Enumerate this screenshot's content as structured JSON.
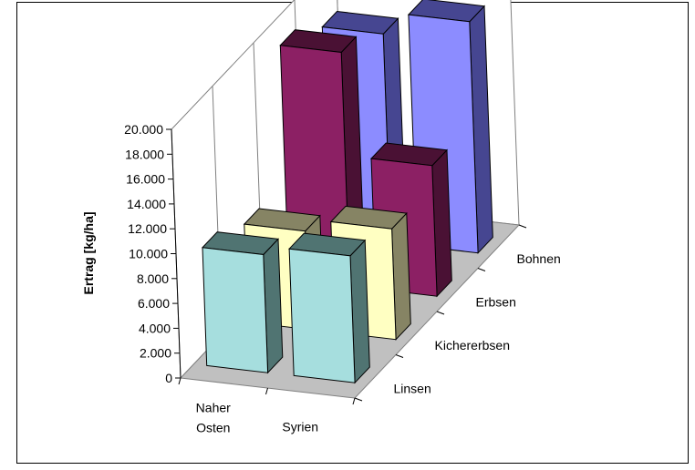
{
  "chart_data": {
    "type": "bar",
    "variant": "3d-column",
    "title": "",
    "ylabel": "Ertrag [kg/ha]",
    "ylim": [
      0,
      20000
    ],
    "ytick_labels": [
      "0",
      "2.000",
      "4.000",
      "6.000",
      "8.000",
      "10.000",
      "12.000",
      "14.000",
      "16.000",
      "18.000",
      "20.000"
    ],
    "categories": [
      "Naher\nOsten",
      "Syrien"
    ],
    "category_lines": [
      [
        "Naher",
        "Osten"
      ],
      [
        "Syrien"
      ]
    ],
    "series": [
      {
        "name": "Linsen",
        "values": [
          9500,
          10200
        ],
        "front_color": "#A6DEDE",
        "side_color": "#507472"
      },
      {
        "name": "Kichererbsen",
        "values": [
          7900,
          8900
        ],
        "front_color": "#FFFFC2",
        "side_color": "#868464"
      },
      {
        "name": "Erbsen",
        "values": [
          18800,
          10500
        ],
        "front_color": "#8C2064",
        "side_color": "#4A1134"
      },
      {
        "name": "Bohnen",
        "values": [
          16800,
          18600
        ],
        "front_color": "#8C8CFF",
        "side_color": "#464691"
      }
    ],
    "grid": "vertical back-wall lines",
    "legend": "depth-axis labels"
  }
}
